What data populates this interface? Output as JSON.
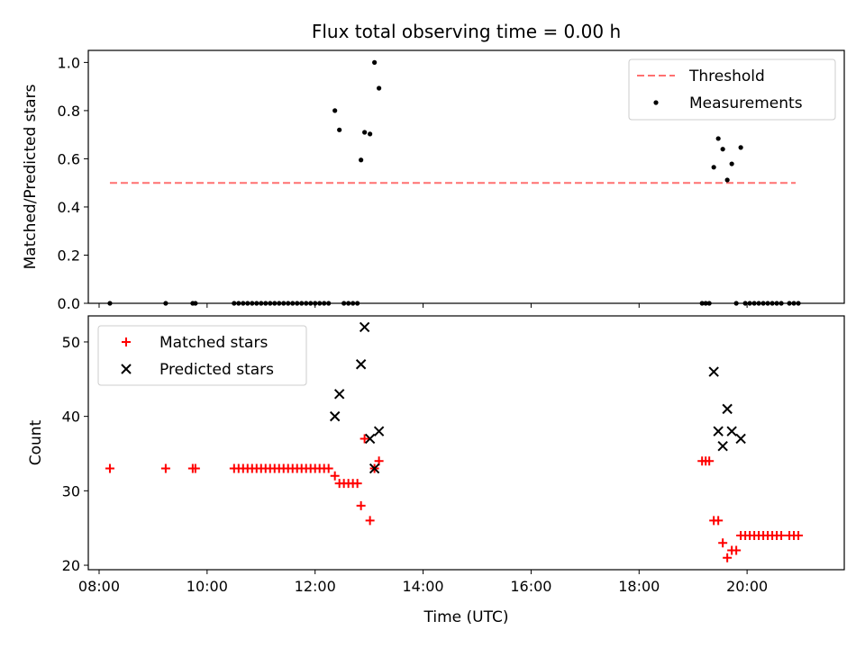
{
  "chart_data": [
    {
      "type": "scatter",
      "title": "Flux total observing time = 0.00 h",
      "xlabel": "",
      "ylabel": "Matched/Predicted stars",
      "xlim": [
        "07:48",
        "21:48"
      ],
      "ylim": [
        0,
        1.05
      ],
      "yticks": [
        0.0,
        0.2,
        0.4,
        0.6,
        0.8,
        1.0
      ],
      "ytick_labels": [
        "0.0",
        "0.2",
        "0.4",
        "0.6",
        "0.8",
        "1.0"
      ],
      "legend_position": "top-right",
      "series": [
        {
          "name": "Threshold",
          "kind": "dashed-line",
          "color": "#ff7070",
          "points": [
            [
              "08:12",
              0.5
            ],
            [
              "20:54",
              0.5
            ]
          ]
        },
        {
          "name": "Measurements",
          "kind": "dots",
          "color": "#000000",
          "points": [
            [
              "08:12",
              0
            ],
            [
              "09:14",
              0
            ],
            [
              "09:44",
              0
            ],
            [
              "09:47",
              0
            ],
            [
              "10:30",
              0
            ],
            [
              "10:35",
              0
            ],
            [
              "10:40",
              0
            ],
            [
              "10:45",
              0
            ],
            [
              "10:50",
              0
            ],
            [
              "10:55",
              0
            ],
            [
              "11:00",
              0
            ],
            [
              "11:05",
              0
            ],
            [
              "11:10",
              0
            ],
            [
              "11:15",
              0
            ],
            [
              "11:20",
              0
            ],
            [
              "11:25",
              0
            ],
            [
              "11:30",
              0
            ],
            [
              "11:35",
              0
            ],
            [
              "11:40",
              0
            ],
            [
              "11:45",
              0
            ],
            [
              "11:50",
              0
            ],
            [
              "11:55",
              0
            ],
            [
              "12:00",
              0
            ],
            [
              "12:05",
              0
            ],
            [
              "12:10",
              0
            ],
            [
              "12:15",
              0
            ],
            [
              "12:22",
              0.8
            ],
            [
              "12:27",
              0.72
            ],
            [
              "12:32",
              0
            ],
            [
              "12:37",
              0
            ],
            [
              "12:42",
              0
            ],
            [
              "12:47",
              0
            ],
            [
              "12:51",
              0.595
            ],
            [
              "12:55",
              0.71
            ],
            [
              "13:01",
              0.703
            ],
            [
              "13:06",
              1.0
            ],
            [
              "13:11",
              0.893
            ],
            [
              "19:10",
              0
            ],
            [
              "19:14",
              0
            ],
            [
              "19:18",
              0
            ],
            [
              "19:23",
              0.565
            ],
            [
              "19:28",
              0.684
            ],
            [
              "19:33",
              0.64
            ],
            [
              "19:38",
              0.512
            ],
            [
              "19:43",
              0.579
            ],
            [
              "19:53",
              0.647
            ],
            [
              "19:48",
              0
            ],
            [
              "19:58",
              0
            ],
            [
              "20:03",
              0
            ],
            [
              "20:08",
              0
            ],
            [
              "20:13",
              0
            ],
            [
              "20:18",
              0
            ],
            [
              "20:23",
              0
            ],
            [
              "20:28",
              0
            ],
            [
              "20:33",
              0
            ],
            [
              "20:38",
              0
            ],
            [
              "20:47",
              0
            ],
            [
              "20:52",
              0
            ],
            [
              "20:57",
              0
            ]
          ]
        }
      ]
    },
    {
      "type": "scatter",
      "title": "",
      "xlabel": "Time (UTC)",
      "ylabel": "Count",
      "xlim": [
        "07:48",
        "21:48"
      ],
      "ylim": [
        19.4,
        53.5
      ],
      "yticks": [
        20,
        30,
        40,
        50
      ],
      "ytick_labels": [
        "20",
        "30",
        "40",
        "50"
      ],
      "xticks": [
        "08:00",
        "10:00",
        "12:00",
        "14:00",
        "16:00",
        "18:00",
        "20:00"
      ],
      "xtick_labels": [
        "08:00",
        "10:00",
        "12:00",
        "14:00",
        "16:00",
        "18:00",
        "20:00"
      ],
      "legend_position": "top-left",
      "series": [
        {
          "name": "Matched stars",
          "kind": "plus",
          "color": "#ff0000",
          "points": [
            [
              "08:12",
              33
            ],
            [
              "09:14",
              33
            ],
            [
              "09:44",
              33
            ],
            [
              "09:47",
              33
            ],
            [
              "10:30",
              33
            ],
            [
              "10:35",
              33
            ],
            [
              "10:40",
              33
            ],
            [
              "10:45",
              33
            ],
            [
              "10:50",
              33
            ],
            [
              "10:55",
              33
            ],
            [
              "11:00",
              33
            ],
            [
              "11:05",
              33
            ],
            [
              "11:10",
              33
            ],
            [
              "11:15",
              33
            ],
            [
              "11:20",
              33
            ],
            [
              "11:25",
              33
            ],
            [
              "11:30",
              33
            ],
            [
              "11:35",
              33
            ],
            [
              "11:40",
              33
            ],
            [
              "11:45",
              33
            ],
            [
              "11:50",
              33
            ],
            [
              "11:55",
              33
            ],
            [
              "12:00",
              33
            ],
            [
              "12:05",
              33
            ],
            [
              "12:10",
              33
            ],
            [
              "12:15",
              33
            ],
            [
              "12:22",
              32
            ],
            [
              "12:27",
              31
            ],
            [
              "12:32",
              31
            ],
            [
              "12:37",
              31
            ],
            [
              "12:42",
              31
            ],
            [
              "12:47",
              31
            ],
            [
              "12:51",
              28
            ],
            [
              "12:55",
              37
            ],
            [
              "13:01",
              26
            ],
            [
              "13:06",
              33
            ],
            [
              "13:11",
              34
            ],
            [
              "19:10",
              34
            ],
            [
              "19:14",
              34
            ],
            [
              "19:18",
              34
            ],
            [
              "19:23",
              26
            ],
            [
              "19:28",
              26
            ],
            [
              "19:33",
              23
            ],
            [
              "19:38",
              21
            ],
            [
              "19:43",
              22
            ],
            [
              "19:48",
              22
            ],
            [
              "19:53",
              24
            ],
            [
              "19:58",
              24
            ],
            [
              "20:03",
              24
            ],
            [
              "20:08",
              24
            ],
            [
              "20:13",
              24
            ],
            [
              "20:18",
              24
            ],
            [
              "20:23",
              24
            ],
            [
              "20:28",
              24
            ],
            [
              "20:33",
              24
            ],
            [
              "20:38",
              24
            ],
            [
              "20:47",
              24
            ],
            [
              "20:52",
              24
            ],
            [
              "20:57",
              24
            ]
          ]
        },
        {
          "name": "Predicted stars",
          "kind": "x",
          "color": "#000000",
          "points": [
            [
              "12:22",
              40
            ],
            [
              "12:27",
              43
            ],
            [
              "12:51",
              47
            ],
            [
              "12:55",
              52
            ],
            [
              "13:01",
              37
            ],
            [
              "13:06",
              33
            ],
            [
              "13:11",
              38
            ],
            [
              "19:23",
              46
            ],
            [
              "19:28",
              38
            ],
            [
              "19:33",
              36
            ],
            [
              "19:38",
              41
            ],
            [
              "19:43",
              38
            ],
            [
              "19:53",
              37
            ]
          ]
        }
      ]
    }
  ]
}
